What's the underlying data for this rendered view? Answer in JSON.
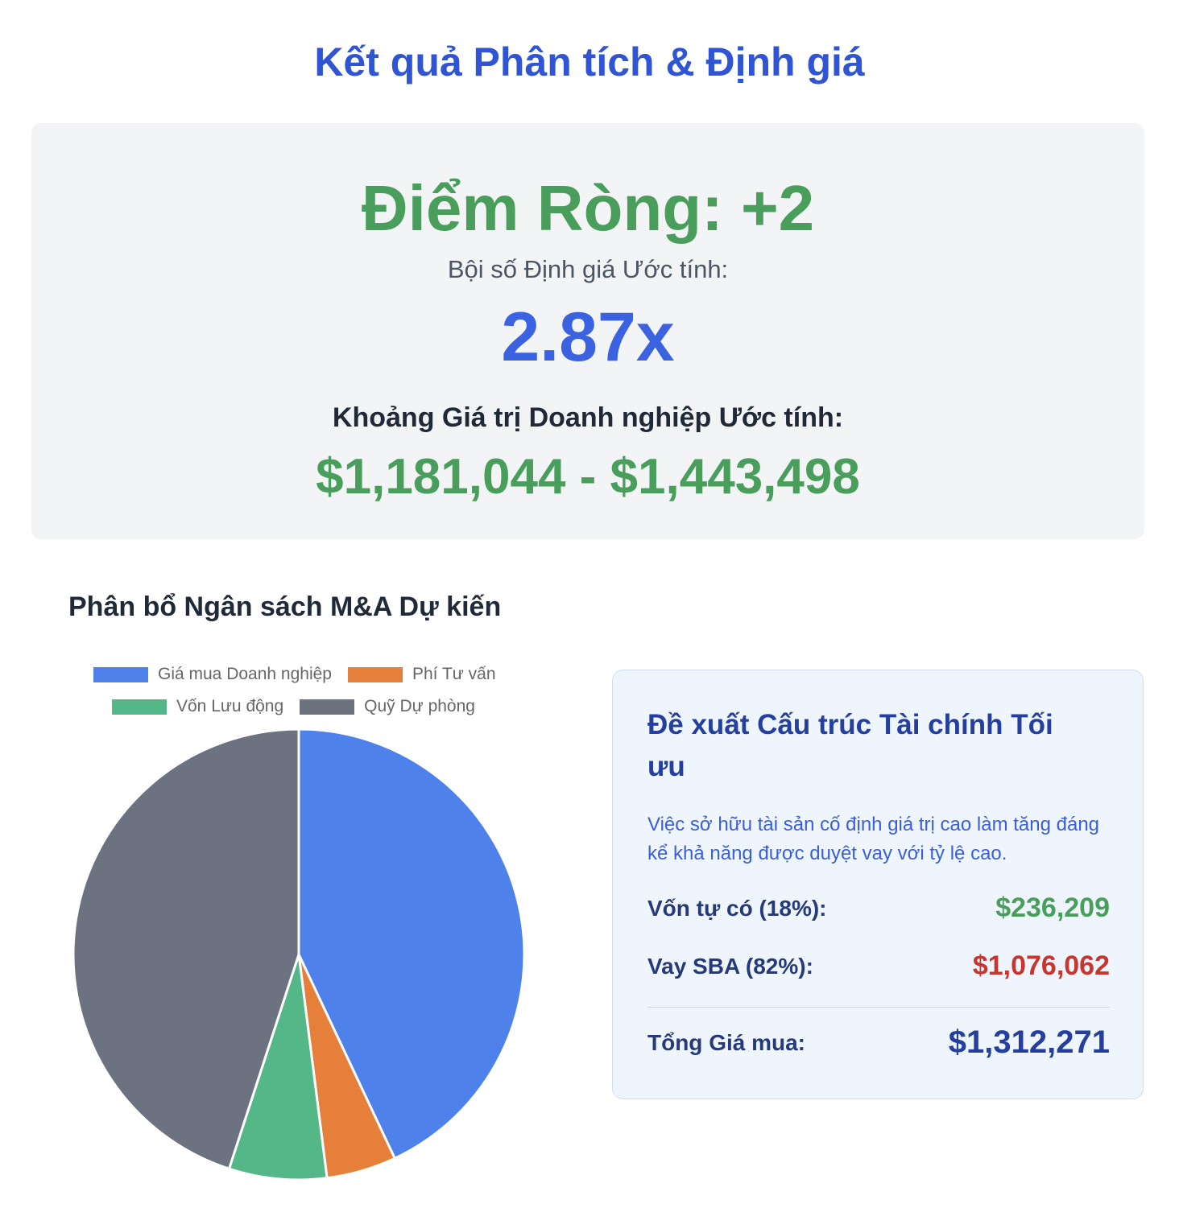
{
  "header": {
    "title": "Kết quả Phân tích & Định giá"
  },
  "summary": {
    "net_score": "Điểm Ròng: +2",
    "multiple_label": "Bội số Định giá Ước tính:",
    "multiple_value": "2.87x",
    "range_label": "Khoảng Giá trị Doanh nghiệp Ước tính:",
    "range_value": "$1,181,044 - $1,443,498"
  },
  "budget": {
    "heading": "Phân bổ Ngân sách M&A Dự kiến"
  },
  "chart_data": {
    "type": "pie",
    "title": "",
    "categories": [
      "Giá mua Doanh nghiệp",
      "Phí Tư vấn",
      "Vốn Lưu động",
      "Quỹ Dự phòng"
    ],
    "values": [
      43,
      5,
      7,
      45
    ],
    "colors": [
      "#4e81ea",
      "#e67f3a",
      "#54b787",
      "#6d7280"
    ],
    "legend_position": "top"
  },
  "financing": {
    "title": "Đề xuất Cấu trúc Tài chính Tối ưu",
    "note": "Việc sở hữu tài sản cố định giá trị cao làm tăng đáng kể khả năng được duyệt vay với tỷ lệ cao.",
    "equity_label": "Vốn tự có (18%):",
    "equity_value": "$236,209",
    "equity_color": "#4a9e5c",
    "loan_label": "Vay SBA (82%):",
    "loan_value": "$1,076,062",
    "loan_color": "#c8352e",
    "total_label": "Tổng Giá mua:",
    "total_value": "$1,312,271"
  }
}
